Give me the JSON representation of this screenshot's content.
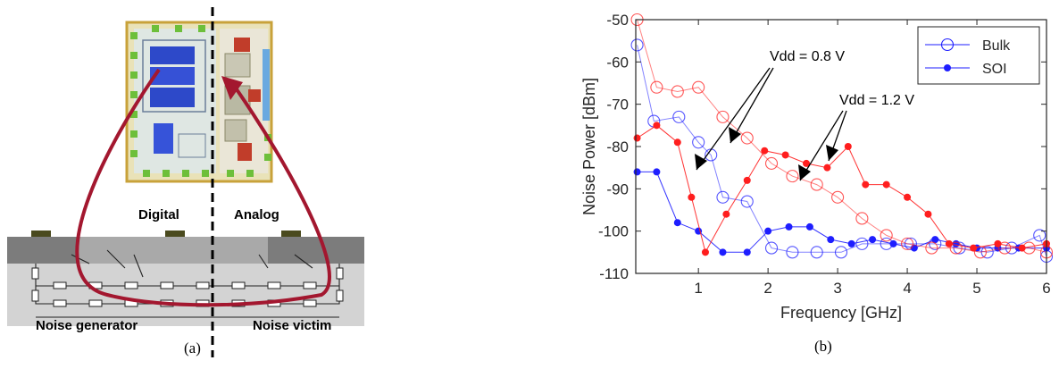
{
  "panel_a": {
    "label_digital": "Digital",
    "label_analog": "Analog",
    "label_generator": "Noise generator",
    "label_victim": "Noise victim",
    "caption": "(a)"
  },
  "panel_b": {
    "caption": "(b)",
    "annotation_08": "Vdd = 0.8 V",
    "annotation_12": "Vdd = 1.2 V"
  },
  "chart_data": {
    "type": "line",
    "xlabel": "Frequency [GHz]",
    "ylabel": "Noise Power [dBm]",
    "xlim": [
      0.1,
      6
    ],
    "ylim": [
      -110,
      -50
    ],
    "xticks": [
      "1",
      "2",
      "3",
      "4",
      "5",
      "6"
    ],
    "yticks": [
      "-50",
      "-60",
      "-70",
      "-80",
      "-90",
      "-100",
      "-110"
    ],
    "legend": {
      "position": "top-right",
      "entries": [
        "Bulk",
        "SOI"
      ]
    },
    "colors": {
      "vdd08": "#1e1eff",
      "vdd12": "#ff1e1e"
    },
    "series": [
      {
        "name": "Bulk",
        "group": "Bulk",
        "color": "#1e1eff",
        "x": [
          0.12,
          0.36,
          0.72,
          1.0,
          1.18,
          1.35,
          1.7,
          2.05,
          2.35,
          2.7,
          3.05,
          3.35,
          3.7,
          4.05,
          4.4,
          4.75,
          5.15,
          5.5,
          5.9,
          6.0
        ],
        "y": [
          -56,
          -74,
          -73,
          -79,
          -82,
          -92,
          -93,
          -104,
          -105,
          -105,
          -105,
          -103,
          -103,
          -103,
          -103,
          -104,
          -105,
          -104,
          -101,
          -106
        ]
      },
      {
        "name": "SOI",
        "group": "SOI",
        "color": "#1e1eff",
        "x": [
          0.12,
          0.4,
          0.7,
          1.0,
          1.35,
          1.7,
          2.0,
          2.3,
          2.6,
          2.9,
          3.2,
          3.5,
          3.8,
          4.1,
          4.4,
          4.7,
          5.0,
          5.3,
          5.6,
          6.0
        ],
        "y": [
          -86,
          -86,
          -98,
          -100,
          -105,
          -105,
          -100,
          -99,
          -99,
          -102,
          -103,
          -102,
          -103,
          -104,
          -102,
          -103,
          -104,
          -104,
          -104,
          -104
        ]
      },
      {
        "name": "Bulk",
        "group": "Bulk",
        "color": "#ff1e1e",
        "x": [
          0.12,
          0.4,
          0.7,
          1.0,
          1.35,
          1.7,
          2.05,
          2.35,
          2.7,
          3.0,
          3.35,
          3.7,
          4.0,
          4.35,
          4.7,
          5.05,
          5.4,
          5.75,
          6.0
        ],
        "y": [
          -50,
          -66,
          -67,
          -66,
          -73,
          -78,
          -84,
          -87,
          -89,
          -92,
          -97,
          -101,
          -103,
          -104,
          -104,
          -105,
          -104,
          -104,
          -105
        ]
      },
      {
        "name": "SOI",
        "group": "SOI",
        "color": "#ff1e1e",
        "x": [
          0.12,
          0.4,
          0.7,
          0.9,
          1.1,
          1.4,
          1.7,
          1.95,
          2.25,
          2.55,
          2.85,
          3.15,
          3.4,
          3.7,
          4.0,
          4.3,
          4.6,
          4.95,
          5.3,
          5.65,
          6.0
        ],
        "y": [
          -78,
          -75,
          -79,
          -92,
          -105,
          -96,
          -88,
          -81,
          -82,
          -84,
          -85,
          -80,
          -89,
          -89,
          -92,
          -96,
          -103,
          -104,
          -103,
          -104,
          -103
        ]
      }
    ]
  }
}
